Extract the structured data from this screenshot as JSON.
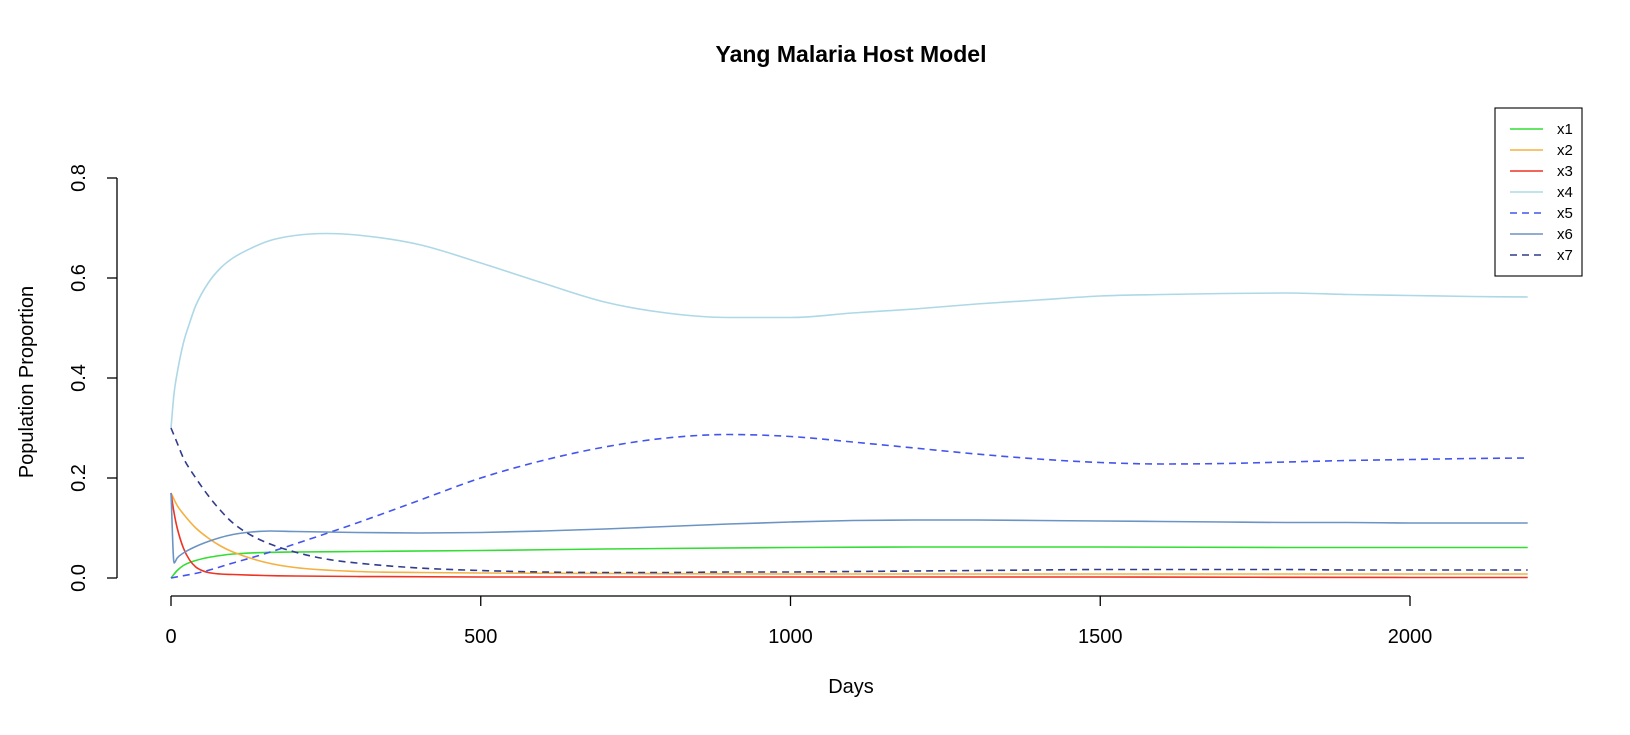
{
  "chart_data": {
    "type": "line",
    "title": "Yang Malaria Host Model",
    "xlabel": "Days",
    "ylabel": "Population Proportion",
    "xlim": [
      0,
      2190
    ],
    "ylim": [
      0,
      0.8
    ],
    "x_ticks": [
      0,
      500,
      1000,
      1500,
      2000
    ],
    "y_ticks": [
      0.0,
      0.2,
      0.4,
      0.6,
      0.8
    ],
    "x_tick_labels": [
      "0",
      "500",
      "1000",
      "1500",
      "2000"
    ],
    "y_tick_labels": [
      "0.0",
      "0.2",
      "0.4",
      "0.6",
      "0.8"
    ],
    "grid": false,
    "legend_position": "top-right",
    "series": [
      {
        "name": "x1",
        "color": "#33dd33",
        "dash": "solid",
        "x": [
          0,
          10,
          20,
          40,
          60,
          80,
          100,
          150,
          200,
          300,
          500,
          700,
          1000,
          1200,
          1500,
          1800,
          2000,
          2190
        ],
        "y": [
          0.0,
          0.015,
          0.025,
          0.035,
          0.041,
          0.045,
          0.048,
          0.051,
          0.052,
          0.053,
          0.055,
          0.058,
          0.061,
          0.062,
          0.062,
          0.061,
          0.061,
          0.061
        ]
      },
      {
        "name": "x2",
        "color": "#f5b041",
        "dash": "solid",
        "x": [
          0,
          10,
          20,
          40,
          60,
          80,
          100,
          150,
          200,
          300,
          400,
          500,
          700,
          1000,
          1500,
          2000,
          2190
        ],
        "y": [
          0.17,
          0.145,
          0.128,
          0.1,
          0.08,
          0.064,
          0.052,
          0.032,
          0.021,
          0.013,
          0.011,
          0.01,
          0.009,
          0.008,
          0.008,
          0.008,
          0.008
        ]
      },
      {
        "name": "x3",
        "color": "#ee3322",
        "dash": "solid",
        "x": [
          0,
          5,
          10,
          20,
          30,
          40,
          50,
          60,
          80,
          100,
          150,
          200,
          300,
          500,
          1000,
          1500,
          2000,
          2190
        ],
        "y": [
          0.17,
          0.13,
          0.1,
          0.06,
          0.036,
          0.022,
          0.015,
          0.011,
          0.008,
          0.007,
          0.005,
          0.004,
          0.003,
          0.002,
          0.002,
          0.002,
          0.001,
          0.001
        ]
      },
      {
        "name": "x4",
        "color": "#add8e6",
        "dash": "solid",
        "x": [
          0,
          5,
          10,
          20,
          30,
          40,
          60,
          80,
          100,
          130,
          160,
          200,
          250,
          300,
          400,
          500,
          600,
          700,
          800,
          900,
          1000,
          1100,
          1200,
          1300,
          1400,
          1500,
          1600,
          1700,
          1800,
          1900,
          2000,
          2100,
          2190
        ],
        "y": [
          0.3,
          0.37,
          0.41,
          0.47,
          0.51,
          0.545,
          0.59,
          0.62,
          0.64,
          0.66,
          0.675,
          0.685,
          0.689,
          0.686,
          0.667,
          0.63,
          0.59,
          0.552,
          0.53,
          0.521,
          0.521,
          0.53,
          0.538,
          0.548,
          0.556,
          0.564,
          0.567,
          0.569,
          0.57,
          0.567,
          0.565,
          0.563,
          0.562
        ]
      },
      {
        "name": "x5",
        "color": "#4455ee",
        "dash": "dashed",
        "x": [
          0,
          50,
          100,
          150,
          200,
          300,
          400,
          500,
          600,
          700,
          800,
          900,
          1000,
          1100,
          1200,
          1300,
          1400,
          1500,
          1600,
          1700,
          1800,
          1900,
          2000,
          2100,
          2190
        ],
        "y": [
          0.0,
          0.012,
          0.03,
          0.048,
          0.068,
          0.11,
          0.155,
          0.2,
          0.235,
          0.262,
          0.28,
          0.287,
          0.283,
          0.272,
          0.26,
          0.248,
          0.238,
          0.231,
          0.228,
          0.229,
          0.232,
          0.235,
          0.237,
          0.239,
          0.24
        ]
      },
      {
        "name": "x6",
        "color": "#6b93c4",
        "dash": "solid",
        "x": [
          0,
          5,
          10,
          20,
          40,
          60,
          80,
          100,
          130,
          160,
          200,
          300,
          400,
          500,
          600,
          700,
          800,
          900,
          1000,
          1100,
          1200,
          1300,
          1400,
          1500,
          1600,
          1700,
          1800,
          1900,
          2000,
          2100,
          2190
        ],
        "y": [
          0.17,
          0.03,
          0.04,
          0.05,
          0.063,
          0.073,
          0.081,
          0.087,
          0.092,
          0.094,
          0.093,
          0.091,
          0.09,
          0.091,
          0.094,
          0.098,
          0.103,
          0.108,
          0.112,
          0.115,
          0.116,
          0.116,
          0.115,
          0.114,
          0.113,
          0.112,
          0.111,
          0.111,
          0.11,
          0.11,
          0.11
        ]
      },
      {
        "name": "x7",
        "color": "#303c8c",
        "dash": "dashed",
        "x": [
          0,
          5,
          10,
          20,
          40,
          60,
          80,
          100,
          130,
          160,
          200,
          250,
          300,
          400,
          500,
          600,
          700,
          800,
          900,
          1000,
          1100,
          1200,
          1300,
          1400,
          1500,
          1600,
          1700,
          1800,
          1900,
          2000,
          2100,
          2190
        ],
        "y": [
          0.3,
          0.285,
          0.27,
          0.24,
          0.2,
          0.165,
          0.135,
          0.11,
          0.085,
          0.068,
          0.052,
          0.038,
          0.03,
          0.02,
          0.015,
          0.012,
          0.011,
          0.011,
          0.012,
          0.012,
          0.013,
          0.014,
          0.015,
          0.016,
          0.017,
          0.017,
          0.017,
          0.017,
          0.016,
          0.016,
          0.016,
          0.016
        ]
      }
    ]
  }
}
